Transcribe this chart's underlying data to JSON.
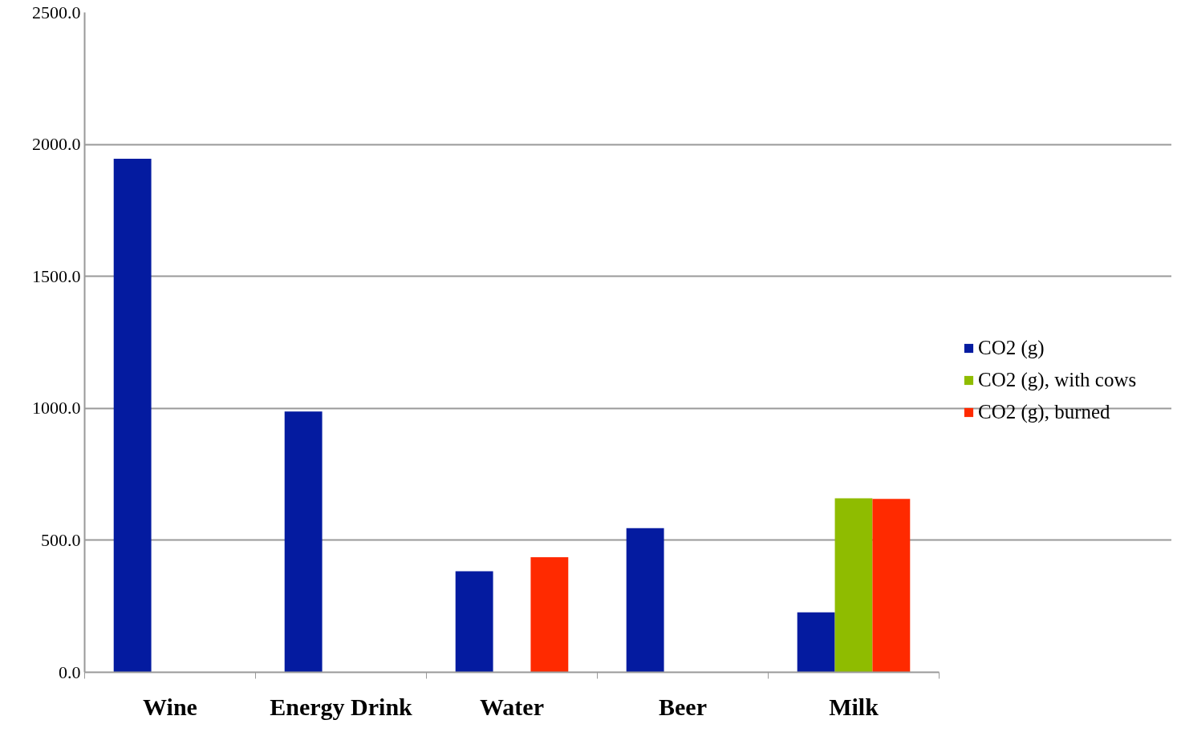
{
  "chart_data": {
    "type": "bar",
    "categories": [
      "Wine",
      "Energy Drink",
      "Water",
      "Beer",
      "Milk"
    ],
    "series": [
      {
        "name": "CO2 (g)",
        "color": "#041ba0",
        "values": [
          1946,
          988,
          383,
          546,
          227
        ]
      },
      {
        "name": "CO2 (g), with cows",
        "color": "#8fbc00",
        "values": [
          null,
          null,
          null,
          null,
          659
        ]
      },
      {
        "name": "CO2 (g), burned",
        "color": "#ff2a00",
        "values": [
          null,
          null,
          436,
          null,
          657
        ]
      }
    ],
    "ylim": [
      0,
      2500
    ],
    "yticks": [
      {
        "value": 0,
        "label": "0.0"
      },
      {
        "value": 500,
        "label": "500.0"
      },
      {
        "value": 1000,
        "label": "1000.0"
      },
      {
        "value": 1500,
        "label": "1500.0"
      },
      {
        "value": 2000,
        "label": "2000.0"
      },
      {
        "value": 2500,
        "label": "2500.0"
      }
    ],
    "grid": "y",
    "legend": "right"
  }
}
